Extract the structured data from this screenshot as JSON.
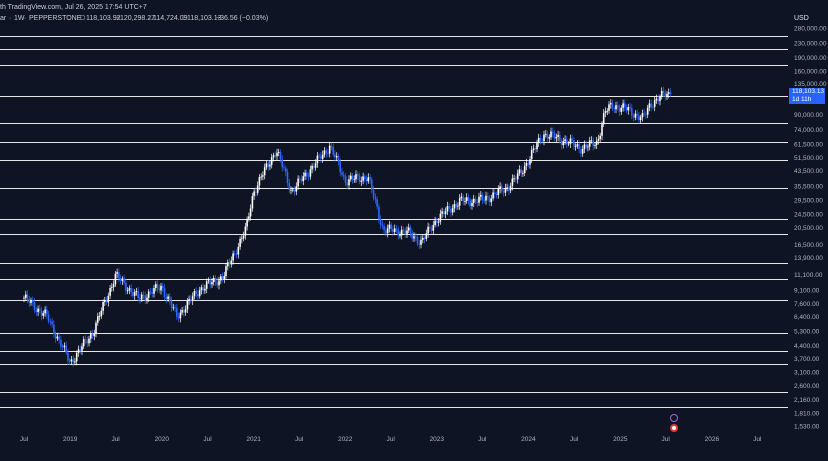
{
  "header": {
    "symbol_fragment": "ar",
    "interval": "1W",
    "exchange": "PEPPERSTONE",
    "publisher_fragment": "th TradingView.com, Jul 26, 2025 17:54 UTC+7",
    "ohlc": {
      "open_label": "O",
      "open": "118,103.92",
      "high_label": "H",
      "high": "120,298.27",
      "low_label": "L",
      "low": "114,724.09",
      "close_label": "C",
      "close": "118,103.13",
      "change": "−36.56 (−0.03%)"
    }
  },
  "price_axis": {
    "currency": "USD",
    "labels": [
      "280,000.00",
      "230,000.00",
      "190,000.00",
      "160,000.00",
      "135,000.00",
      "90,000.00",
      "74,000.00",
      "61,500.00",
      "51,500.00",
      "43,500.00",
      "35,500.00",
      "29,500.00",
      "24,500.00",
      "20,500.00",
      "16,500.00",
      "13,900.00",
      "11,100.00",
      "9,100.00",
      "7,600.00",
      "6,400.00",
      "5,300.00",
      "4,400.00",
      "3,700.00",
      "3,100.00",
      "2,600.00",
      "2,160.00",
      "1,810.00",
      "1,530.00"
    ]
  },
  "current_price": {
    "value": "118,103.13",
    "countdown": "1d 11h"
  },
  "time_axis": {
    "labels": [
      "Jul",
      "2019",
      "Jul",
      "2020",
      "Jul",
      "2021",
      "Jul",
      "2022",
      "Jul",
      "2023",
      "Jul",
      "2024",
      "Jul",
      "2025",
      "Jul",
      "2026",
      "Jul"
    ]
  },
  "horizontal_levels": [
    253000,
    212000,
    173000,
    115000,
    81000,
    63000,
    49500,
    34500,
    23000,
    19000,
    13000,
    10500,
    8000,
    5200,
    4100,
    3450,
    2400,
    1950
  ],
  "colors": {
    "background": "#0e1424",
    "up": "#ffffff",
    "down": "#2f66ff",
    "level_line": "#e6e6e6",
    "tag": "#2962ff"
  },
  "icons": {
    "event_top": "flag-event-icon",
    "event_bottom": "earnings-event-icon"
  },
  "chart_data": {
    "type": "candlestick",
    "scale": "log",
    "ylim": [
      1450,
      300000
    ],
    "x": [
      "2018-07",
      "2018-10",
      "2019-01",
      "2019-04",
      "2019-07",
      "2019-10",
      "2020-01",
      "2020-03",
      "2020-06",
      "2020-09",
      "2020-12",
      "2021-01",
      "2021-04",
      "2021-06",
      "2021-09",
      "2021-11",
      "2022-01",
      "2022-04",
      "2022-06",
      "2022-09",
      "2022-11",
      "2023-01",
      "2023-04",
      "2023-07",
      "2023-10",
      "2023-12",
      "2024-03",
      "2024-05",
      "2024-08",
      "2024-10",
      "2024-11",
      "2024-12",
      "2025-02",
      "2025-04",
      "2025-05",
      "2025-07"
    ],
    "close": [
      8200,
      6400,
      3500,
      5200,
      11000,
      8100,
      9500,
      6400,
      9200,
      10800,
      20000,
      33000,
      57000,
      33000,
      47000,
      60000,
      38000,
      40000,
      20000,
      19500,
      17000,
      23000,
      29000,
      29500,
      34000,
      42000,
      70000,
      66000,
      58000,
      63000,
      93000,
      102000,
      96000,
      85000,
      104000,
      118103
    ]
  }
}
